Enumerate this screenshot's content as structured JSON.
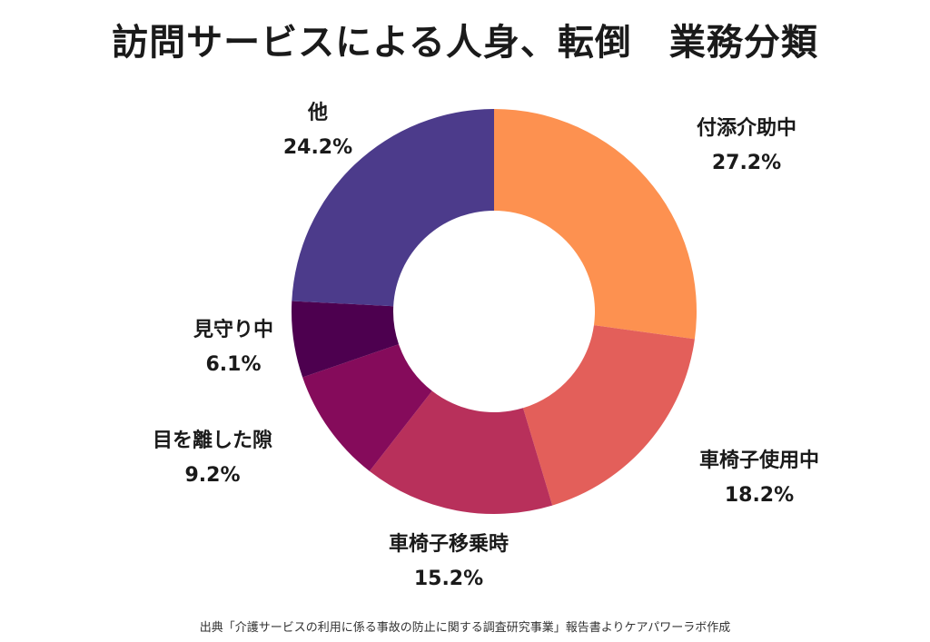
{
  "title": "訪問サービスによる人身、転倒　業務分類",
  "source": "出典「介護サービスの利用に係る事故の防止に関する調査研究事業」報告書よりケアパワーラボ作成",
  "chart_data": {
    "type": "pie",
    "donut": true,
    "title": "訪問サービスによる人身、転倒　業務分類",
    "legend": "none",
    "slices": [
      {
        "label": "付添介助中",
        "value": 27.2,
        "value_label": "27.2%",
        "color": "#fd9150"
      },
      {
        "label": "車椅子使用中",
        "value": 18.2,
        "value_label": "18.2%",
        "color": "#e35f5a"
      },
      {
        "label": "車椅子移乗時",
        "value": 15.2,
        "value_label": "15.2%",
        "color": "#b8305b"
      },
      {
        "label": "目を離した隙",
        "value": 9.2,
        "value_label": "9.2%",
        "color": "#850b5b"
      },
      {
        "label": "見守り中",
        "value": 6.1,
        "value_label": "6.1%",
        "color": "#4d004f"
      },
      {
        "label": "他",
        "value": 24.2,
        "value_label": "24.2%",
        "color": "#4c3b8b"
      }
    ]
  }
}
